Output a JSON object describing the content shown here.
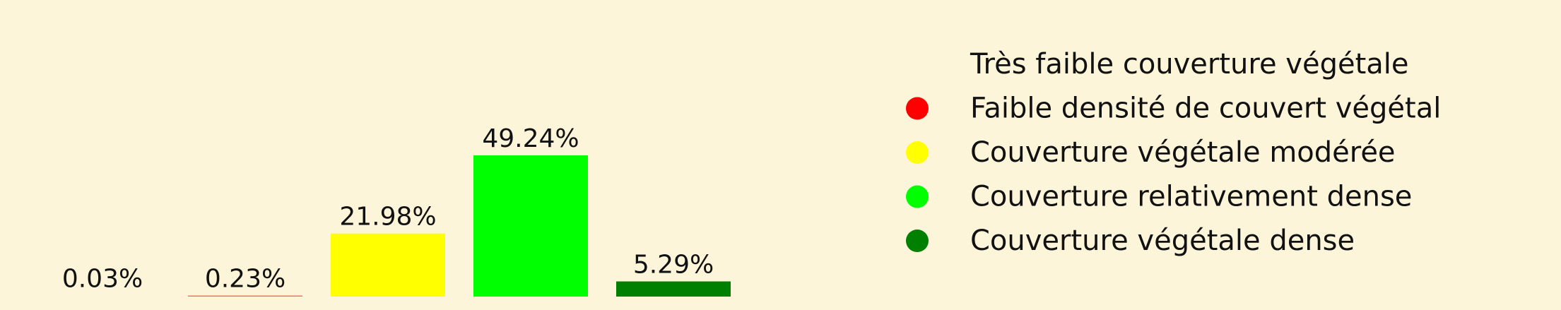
{
  "chart_data": {
    "type": "bar",
    "categories": [
      "Très faible couverture végétale",
      "Faible densité de couvert végétal",
      "Couverture végétale modérée",
      "Couverture relativement dense",
      "Couverture végétale dense"
    ],
    "values": [
      0.03,
      0.23,
      21.98,
      49.24,
      5.29
    ],
    "value_labels": [
      "0.03%",
      "0.23%",
      "21.98%",
      "49.24%",
      "5.29%"
    ],
    "colors": [
      "#fdf5d9",
      "#ff0000",
      "#ffff00",
      "#00ff00",
      "#008000"
    ],
    "legend": {
      "position": "right",
      "entries": [
        "Très faible couverture végétale",
        "Faible densité de couvert végétal",
        "Couverture végétale modérée",
        "Couverture relativement dense",
        "Couverture végétale dense"
      ]
    },
    "title": "",
    "xlabel": "",
    "ylabel": "",
    "ylim": [
      0,
      49.24
    ],
    "grid": false
  }
}
